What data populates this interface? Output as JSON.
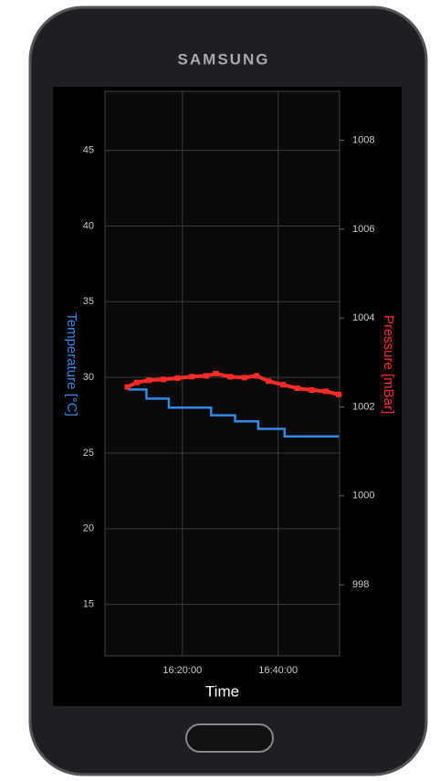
{
  "brand": "SAMSUNG",
  "chart_data": {
    "type": "line",
    "xlabel": "Time",
    "ylabel": "Temperature [°C]",
    "y2label": "Pressure [mBar]",
    "xlim": [
      "16:03:50",
      "16:52:50"
    ],
    "xticks": [
      "16:20:00",
      "16:40:00"
    ],
    "ylim": [
      11.6,
      48.9
    ],
    "yticks": [
      15,
      20,
      25,
      30,
      35,
      40,
      45
    ],
    "y2lim": [
      996.4,
      1009.1
    ],
    "y2ticks": [
      998,
      1000,
      1002,
      1004,
      1006,
      1008
    ],
    "grid": true,
    "series": [
      {
        "color": "#2f8be6",
        "step": true,
        "x": [
          "16:08:30",
          "16:12:30",
          "16:17:10",
          "16:26:00",
          "16:31:00",
          "16:35:50",
          "16:41:20",
          "16:52:40"
        ],
        "values": [
          29.2,
          28.6,
          28.0,
          27.5,
          27.1,
          26.6,
          26.1,
          26.1
        ]
      },
      {
        "color": "#ff2a2a",
        "axis": "y2",
        "markers": true,
        "x": [
          "16:08:30",
          "16:10:30",
          "16:13:00",
          "16:16:00",
          "16:19:00",
          "16:22:00",
          "16:25:00",
          "16:27:00",
          "16:30:00",
          "16:33:00",
          "16:35:30",
          "16:38:00",
          "16:41:00",
          "16:44:00",
          "16:47:00",
          "16:50:00",
          "16:52:40"
        ],
        "values": [
          1002.45,
          1002.55,
          1002.6,
          1002.62,
          1002.65,
          1002.68,
          1002.7,
          1002.75,
          1002.68,
          1002.66,
          1002.7,
          1002.58,
          1002.5,
          1002.42,
          1002.38,
          1002.35,
          1002.28
        ]
      }
    ]
  }
}
